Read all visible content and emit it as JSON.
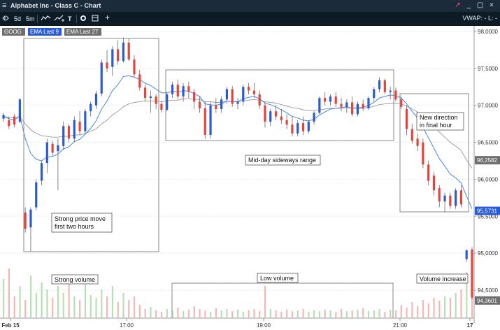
{
  "window": {
    "menu_icon": "≡",
    "title": "Alphabet Inc - Class C - Chart",
    "controls": "_ ▢ ×"
  },
  "toolbar": {
    "timeframe_label": "0",
    "range_5d": "5d",
    "range_5m": "5m",
    "chart_type_icon": "bar-chart-icon",
    "indicator_icon": "indicators-icon",
    "draw_text_icon": "T",
    "settings_icon": "gear-icon",
    "layout_icon": "layout-icon",
    "add_icon": "+",
    "right_label": "VWAP: -  L: -"
  },
  "colors": {
    "up": "#2a5bd7",
    "down": "#e8433b",
    "ema9": "#4a86e8",
    "ema27": "#9a9a9a",
    "vol_up": "#b7dfb5",
    "vol_down": "#f2b7b7",
    "label_blue": "#2a5bd7",
    "label_grey": "#6f6f6f"
  },
  "chart_data": {
    "type": "candlestick",
    "symbol": "GOOG",
    "legend": [
      "GOOG",
      "EMA Last 9",
      "EMA Last 27"
    ],
    "y_ticks": [
      "98,0000",
      "97,5000",
      "97,0000",
      "96,5000",
      "96,0000",
      "95,5000",
      "95,0000",
      "94,5000"
    ],
    "x_ticks": [
      "Feb 15",
      "17:00",
      "19:00",
      "21:00",
      "17"
    ],
    "ylim": [
      94.35,
      98.0
    ],
    "price_labels": [
      {
        "text": "96,2582",
        "value": 96.258,
        "style": "grey"
      },
      {
        "text": "95,5731",
        "value": 95.573,
        "style": "blue"
      },
      {
        "text": "94,3601",
        "value": 94.36,
        "style": "grey"
      }
    ],
    "candles": [
      {
        "o": 96.82,
        "h": 96.9,
        "l": 96.78,
        "c": 96.87
      },
      {
        "o": 96.8,
        "h": 96.85,
        "l": 96.68,
        "c": 96.72
      },
      {
        "o": 96.85,
        "h": 96.88,
        "l": 96.7,
        "c": 96.74
      },
      {
        "o": 96.78,
        "h": 97.1,
        "l": 96.76,
        "c": 97.08
      },
      {
        "o": 95.55,
        "h": 95.62,
        "l": 95.28,
        "c": 95.33
      },
      {
        "o": 95.35,
        "h": 95.62,
        "l": 95.02,
        "c": 95.59
      },
      {
        "o": 95.62,
        "h": 96.0,
        "l": 95.58,
        "c": 95.96
      },
      {
        "o": 95.98,
        "h": 96.25,
        "l": 95.92,
        "c": 96.22
      },
      {
        "o": 96.22,
        "h": 96.55,
        "l": 96.08,
        "c": 96.5
      },
      {
        "o": 96.48,
        "h": 96.52,
        "l": 96.32,
        "c": 96.36
      },
      {
        "o": 96.38,
        "h": 96.55,
        "l": 95.85,
        "c": 96.46
      },
      {
        "o": 96.45,
        "h": 96.78,
        "l": 96.4,
        "c": 96.72
      },
      {
        "o": 96.72,
        "h": 96.75,
        "l": 96.5,
        "c": 96.55
      },
      {
        "o": 96.55,
        "h": 96.85,
        "l": 96.5,
        "c": 96.8
      },
      {
        "o": 96.78,
        "h": 96.92,
        "l": 96.6,
        "c": 96.65
      },
      {
        "o": 96.65,
        "h": 96.95,
        "l": 96.62,
        "c": 96.92
      },
      {
        "o": 96.92,
        "h": 97.05,
        "l": 96.85,
        "c": 97.02
      },
      {
        "o": 97.0,
        "h": 97.2,
        "l": 96.95,
        "c": 97.16
      },
      {
        "o": 97.16,
        "h": 97.62,
        "l": 97.12,
        "c": 97.58
      },
      {
        "o": 97.58,
        "h": 97.75,
        "l": 97.45,
        "c": 97.5
      },
      {
        "o": 97.52,
        "h": 97.8,
        "l": 97.4,
        "c": 97.76
      },
      {
        "o": 97.76,
        "h": 97.88,
        "l": 97.55,
        "c": 97.6
      },
      {
        "o": 97.6,
        "h": 97.92,
        "l": 97.58,
        "c": 97.85
      },
      {
        "o": 97.85,
        "h": 97.9,
        "l": 97.6,
        "c": 97.62
      },
      {
        "o": 97.62,
        "h": 97.68,
        "l": 97.38,
        "c": 97.42
      },
      {
        "o": 97.42,
        "h": 97.48,
        "l": 97.2,
        "c": 97.24
      },
      {
        "o": 97.24,
        "h": 97.28,
        "l": 97.05,
        "c": 97.1
      },
      {
        "o": 97.1,
        "h": 97.2,
        "l": 96.9,
        "c": 97.12
      },
      {
        "o": 97.12,
        "h": 97.15,
        "l": 96.95,
        "c": 97.02
      },
      {
        "o": 97.02,
        "h": 97.06,
        "l": 96.9,
        "c": 96.94
      },
      {
        "o": 96.94,
        "h": 97.18,
        "l": 96.92,
        "c": 97.15
      },
      {
        "o": 97.15,
        "h": 97.32,
        "l": 97.1,
        "c": 97.28
      },
      {
        "o": 97.28,
        "h": 97.35,
        "l": 97.08,
        "c": 97.12
      },
      {
        "o": 97.12,
        "h": 97.3,
        "l": 97.05,
        "c": 97.26
      },
      {
        "o": 97.26,
        "h": 97.32,
        "l": 97.1,
        "c": 97.18
      },
      {
        "o": 97.18,
        "h": 97.22,
        "l": 96.95,
        "c": 97.05
      },
      {
        "o": 97.05,
        "h": 97.12,
        "l": 96.9,
        "c": 96.96
      },
      {
        "o": 96.96,
        "h": 97.05,
        "l": 96.55,
        "c": 96.6
      },
      {
        "o": 96.6,
        "h": 97.05,
        "l": 96.55,
        "c": 97.0
      },
      {
        "o": 97.0,
        "h": 97.1,
        "l": 96.9,
        "c": 96.95
      },
      {
        "o": 96.95,
        "h": 97.12,
        "l": 96.9,
        "c": 97.08
      },
      {
        "o": 97.08,
        "h": 97.25,
        "l": 97.02,
        "c": 97.22
      },
      {
        "o": 97.22,
        "h": 97.26,
        "l": 96.98,
        "c": 97.02
      },
      {
        "o": 97.02,
        "h": 97.1,
        "l": 96.95,
        "c": 97.05
      },
      {
        "o": 97.05,
        "h": 97.28,
        "l": 97.0,
        "c": 97.25
      },
      {
        "o": 97.25,
        "h": 97.3,
        "l": 97.15,
        "c": 97.2
      },
      {
        "o": 97.2,
        "h": 97.3,
        "l": 97.1,
        "c": 97.15
      },
      {
        "o": 97.15,
        "h": 97.2,
        "l": 96.95,
        "c": 97.0
      },
      {
        "o": 97.0,
        "h": 97.05,
        "l": 96.7,
        "c": 96.78
      },
      {
        "o": 96.78,
        "h": 96.95,
        "l": 96.72,
        "c": 96.92
      },
      {
        "o": 96.92,
        "h": 97.0,
        "l": 96.8,
        "c": 96.85
      },
      {
        "o": 96.85,
        "h": 96.95,
        "l": 96.75,
        "c": 96.8
      },
      {
        "o": 96.8,
        "h": 96.88,
        "l": 96.68,
        "c": 96.74
      },
      {
        "o": 96.74,
        "h": 96.85,
        "l": 96.58,
        "c": 96.62
      },
      {
        "o": 96.62,
        "h": 96.8,
        "l": 96.58,
        "c": 96.76
      },
      {
        "o": 96.76,
        "h": 96.85,
        "l": 96.6,
        "c": 96.65
      },
      {
        "o": 96.65,
        "h": 96.8,
        "l": 96.62,
        "c": 96.78
      },
      {
        "o": 96.78,
        "h": 96.92,
        "l": 96.74,
        "c": 96.9
      },
      {
        "o": 96.9,
        "h": 97.12,
        "l": 96.88,
        "c": 97.1
      },
      {
        "o": 97.1,
        "h": 97.18,
        "l": 97.0,
        "c": 97.05
      },
      {
        "o": 97.05,
        "h": 97.15,
        "l": 97.0,
        "c": 97.12
      },
      {
        "o": 97.12,
        "h": 97.18,
        "l": 96.98,
        "c": 97.02
      },
      {
        "o": 97.02,
        "h": 97.1,
        "l": 96.92,
        "c": 96.98
      },
      {
        "o": 96.98,
        "h": 97.08,
        "l": 96.9,
        "c": 97.04
      },
      {
        "o": 97.04,
        "h": 97.12,
        "l": 96.85,
        "c": 96.88
      },
      {
        "o": 96.88,
        "h": 97.05,
        "l": 96.85,
        "c": 97.02
      },
      {
        "o": 97.02,
        "h": 97.08,
        "l": 96.92,
        "c": 96.96
      },
      {
        "o": 96.96,
        "h": 97.12,
        "l": 96.94,
        "c": 97.1
      },
      {
        "o": 97.1,
        "h": 97.25,
        "l": 97.05,
        "c": 97.22
      },
      {
        "o": 97.22,
        "h": 97.38,
        "l": 97.18,
        "c": 97.34
      },
      {
        "o": 97.34,
        "h": 97.36,
        "l": 97.15,
        "c": 97.18
      },
      {
        "o": 97.18,
        "h": 97.25,
        "l": 97.08,
        "c": 97.2
      },
      {
        "o": 97.2,
        "h": 97.24,
        "l": 97.05,
        "c": 97.08
      },
      {
        "o": 97.08,
        "h": 97.12,
        "l": 96.95,
        "c": 96.98
      },
      {
        "o": 96.95,
        "h": 97.0,
        "l": 96.6,
        "c": 96.68
      },
      {
        "o": 96.68,
        "h": 96.75,
        "l": 96.48,
        "c": 96.52
      },
      {
        "o": 96.55,
        "h": 96.62,
        "l": 96.38,
        "c": 96.45
      },
      {
        "o": 96.5,
        "h": 96.55,
        "l": 96.15,
        "c": 96.2
      },
      {
        "o": 96.2,
        "h": 96.25,
        "l": 95.92,
        "c": 95.98
      },
      {
        "o": 96.05,
        "h": 96.1,
        "l": 95.78,
        "c": 95.85
      },
      {
        "o": 95.88,
        "h": 95.92,
        "l": 95.62,
        "c": 95.7
      },
      {
        "o": 95.7,
        "h": 95.82,
        "l": 95.55,
        "c": 95.78
      },
      {
        "o": 95.78,
        "h": 95.82,
        "l": 95.6,
        "c": 95.64
      },
      {
        "o": 95.64,
        "h": 95.88,
        "l": 95.6,
        "c": 95.85
      },
      {
        "o": 95.85,
        "h": 95.92,
        "l": 95.62,
        "c": 95.66
      },
      {
        "o": 94.92,
        "h": 95.05,
        "l": 94.88,
        "c": 95.04
      },
      {
        "o": 95.05,
        "h": 95.08,
        "l": 94.38,
        "c": 94.4
      }
    ],
    "ema9": [
      96.85,
      96.82,
      96.8,
      96.86,
      96.55,
      96.35,
      96.27,
      96.25,
      96.3,
      96.31,
      96.34,
      96.41,
      96.44,
      96.51,
      96.54,
      96.61,
      96.69,
      96.79,
      96.95,
      97.06,
      97.2,
      97.28,
      97.39,
      97.4,
      97.38,
      97.35,
      97.3,
      97.27,
      97.22,
      97.17,
      97.17,
      97.19,
      97.18,
      97.2,
      97.19,
      97.16,
      97.12,
      97.02,
      97.01,
      97.0,
      97.02,
      97.06,
      97.05,
      97.05,
      97.09,
      97.11,
      97.12,
      97.09,
      97.03,
      97.01,
      96.98,
      96.94,
      96.9,
      96.85,
      96.83,
      96.8,
      96.79,
      96.81,
      96.87,
      96.91,
      96.95,
      96.96,
      96.97,
      96.98,
      96.96,
      96.97,
      96.97,
      97.0,
      97.04,
      97.1,
      97.12,
      97.14,
      97.13,
      97.1,
      97.02,
      96.92,
      96.83,
      96.7,
      96.56,
      96.42,
      96.28,
      96.18,
      96.07,
      96.02,
      95.95,
      95.77,
      95.6
    ],
    "ema27": [
      96.85,
      96.84,
      96.83,
      96.85,
      96.75,
      96.67,
      96.62,
      96.59,
      96.58,
      96.57,
      96.57,
      96.58,
      96.58,
      96.6,
      96.6,
      96.62,
      96.65,
      96.68,
      96.75,
      96.8,
      96.87,
      96.92,
      96.98,
      97.02,
      97.04,
      97.05,
      97.06,
      97.06,
      97.06,
      97.05,
      97.06,
      97.07,
      97.07,
      97.09,
      97.09,
      97.08,
      97.08,
      97.05,
      97.05,
      97.04,
      97.04,
      97.06,
      97.05,
      97.05,
      97.06,
      97.07,
      97.08,
      97.07,
      97.05,
      97.04,
      97.03,
      97.01,
      96.99,
      96.97,
      96.96,
      96.94,
      96.93,
      96.93,
      96.94,
      96.95,
      96.96,
      96.96,
      96.96,
      96.97,
      96.96,
      96.96,
      96.96,
      96.97,
      96.99,
      97.01,
      97.02,
      97.03,
      97.03,
      97.02,
      96.99,
      96.95,
      96.91,
      96.86,
      96.79,
      96.72,
      96.64,
      96.57,
      96.5,
      96.45,
      96.39,
      96.26,
      96.15
    ],
    "volume": [
      0.55,
      0.7,
      0.3,
      0.45,
      0.25,
      0.6,
      0.35,
      0.5,
      0.4,
      0.28,
      0.45,
      0.35,
      0.55,
      0.3,
      0.25,
      0.5,
      0.32,
      0.28,
      0.4,
      0.3,
      0.45,
      0.22,
      0.35,
      0.25,
      0.3,
      0.18,
      0.12,
      0.15,
      0.1,
      0.08,
      0.12,
      0.1,
      0.14,
      0.09,
      0.11,
      0.16,
      0.12,
      0.1,
      0.08,
      0.13,
      0.1,
      0.12,
      0.09,
      0.11,
      0.08,
      0.1,
      0.12,
      0.09,
      0.45,
      0.12,
      0.1,
      0.08,
      0.11,
      0.09,
      0.1,
      0.12,
      0.08,
      0.1,
      0.09,
      0.11,
      0.1,
      0.08,
      0.12,
      0.09,
      0.1,
      0.11,
      0.13,
      0.09,
      0.1,
      0.12,
      0.08,
      0.11,
      0.1,
      0.18,
      0.14,
      0.22,
      0.16,
      0.25,
      0.2,
      0.28,
      0.24,
      0.3,
      0.28,
      0.35,
      0.4,
      0.65,
      0.85
    ]
  },
  "annotations": {
    "strong_move": [
      "Strong price move",
      "first two hours"
    ],
    "sideways": "Mid-day sideways range",
    "new_direction": [
      "New direction",
      "in final hour"
    ],
    "strong_volume": "Strong volume",
    "low_volume": "Low volume",
    "volume_increase": "Volume increase"
  }
}
